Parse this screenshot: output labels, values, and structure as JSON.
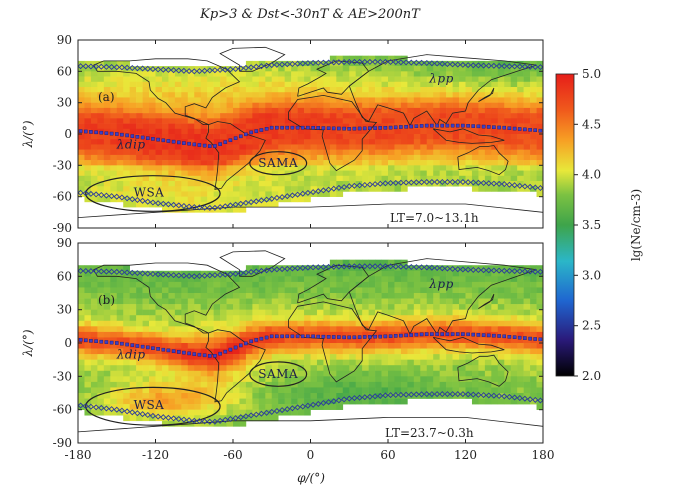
{
  "chart_data": {
    "type": "heatmap",
    "title": "Kp>3 & Dst<-30nT & AE>200nT",
    "xlabel": "φ/(°)",
    "ylabel": "λ/(°)",
    "xlim": [
      -180,
      180
    ],
    "ylim": [
      -90,
      90
    ],
    "x_ticks": [
      "-180",
      "-120",
      "-60",
      "0",
      "60",
      "120",
      "180"
    ],
    "y_ticks": [
      "90",
      "60",
      "30",
      "0",
      "-30",
      "-60",
      "-90"
    ],
    "colorbar": {
      "label": "lg(Ne/cm-3)",
      "range": [
        2.0,
        5.0
      ],
      "ticks": [
        "5.0",
        "4.5",
        "4.0",
        "3.5",
        "3.0",
        "2.5",
        "2.0"
      ],
      "colors": [
        "#000000",
        "#2a1a7a",
        "#1f66d0",
        "#2bb6c8",
        "#3ea44a",
        "#7cc242",
        "#e8e83a",
        "#f7a024",
        "#f05a1c",
        "#e61e1a"
      ]
    },
    "panels": [
      {
        "label": "(a)",
        "lt": "LT=7.0~13.1h",
        "dip_label": "λdip",
        "pp_label": "λpp",
        "regions": [
          {
            "name": "WSA",
            "lon": -125,
            "lat": -56
          },
          {
            "name": "SAMA",
            "lon": -25,
            "lat": -28
          }
        ],
        "dip_equator": [
          [
            -180,
            3
          ],
          [
            -150,
            0
          ],
          [
            -120,
            -5
          ],
          [
            -90,
            -10
          ],
          [
            -75,
            -12
          ],
          [
            -60,
            -5
          ],
          [
            -45,
            2
          ],
          [
            -30,
            6
          ],
          [
            0,
            6
          ],
          [
            30,
            5
          ],
          [
            60,
            6
          ],
          [
            90,
            8
          ],
          [
            120,
            8
          ],
          [
            150,
            6
          ],
          [
            180,
            3
          ]
        ],
        "pp_north": [
          [
            -180,
            65
          ],
          [
            -150,
            64
          ],
          [
            -120,
            62
          ],
          [
            -90,
            60
          ],
          [
            -60,
            62
          ],
          [
            -30,
            66
          ],
          [
            0,
            68
          ],
          [
            30,
            69
          ],
          [
            60,
            69
          ],
          [
            90,
            68
          ],
          [
            120,
            66
          ],
          [
            150,
            65
          ],
          [
            180,
            64
          ]
        ],
        "pp_south": [
          [
            -180,
            -56
          ],
          [
            -150,
            -60
          ],
          [
            -120,
            -66
          ],
          [
            -90,
            -70
          ],
          [
            -75,
            -71
          ],
          [
            -60,
            -68
          ],
          [
            -30,
            -62
          ],
          [
            0,
            -56
          ],
          [
            30,
            -50
          ],
          [
            60,
            -47
          ],
          [
            90,
            -46
          ],
          [
            120,
            -46
          ],
          [
            150,
            -48
          ],
          [
            180,
            -52
          ]
        ]
      },
      {
        "label": "(b)",
        "lt": "LT=23.7~0.3h",
        "dip_label": "λdip",
        "pp_label": "λpp",
        "regions": [
          {
            "name": "WSA",
            "lon": -125,
            "lat": -56
          },
          {
            "name": "SAMA",
            "lon": -25,
            "lat": -28
          }
        ],
        "dip_equator": [
          [
            -180,
            3
          ],
          [
            -150,
            0
          ],
          [
            -120,
            -5
          ],
          [
            -90,
            -10
          ],
          [
            -75,
            -12
          ],
          [
            -60,
            -5
          ],
          [
            -45,
            2
          ],
          [
            -30,
            6
          ],
          [
            0,
            6
          ],
          [
            30,
            5
          ],
          [
            60,
            6
          ],
          [
            90,
            8
          ],
          [
            120,
            8
          ],
          [
            150,
            6
          ],
          [
            180,
            3
          ]
        ],
        "pp_north": [
          [
            -180,
            65
          ],
          [
            -150,
            64
          ],
          [
            -120,
            62
          ],
          [
            -90,
            60
          ],
          [
            -60,
            62
          ],
          [
            -30,
            66
          ],
          [
            0,
            68
          ],
          [
            30,
            69
          ],
          [
            60,
            69
          ],
          [
            90,
            68
          ],
          [
            120,
            66
          ],
          [
            150,
            65
          ],
          [
            180,
            64
          ]
        ],
        "pp_south": [
          [
            -180,
            -56
          ],
          [
            -150,
            -60
          ],
          [
            -120,
            -66
          ],
          [
            -90,
            -70
          ],
          [
            -75,
            -71
          ],
          [
            -60,
            -68
          ],
          [
            -30,
            -62
          ],
          [
            0,
            -56
          ],
          [
            30,
            -50
          ],
          [
            60,
            -47
          ],
          [
            90,
            -46
          ],
          [
            120,
            -46
          ],
          [
            150,
            -48
          ],
          [
            180,
            -52
          ]
        ]
      }
    ]
  }
}
